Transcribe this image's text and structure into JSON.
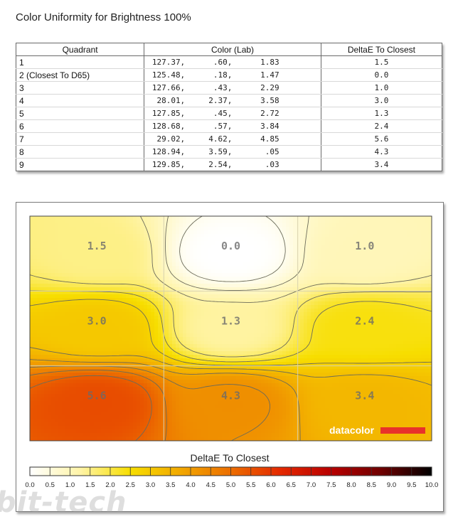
{
  "title": "Color Uniformity for Brightness 100%",
  "table": {
    "headers": [
      "Quadrant",
      "Color (Lab)",
      "DeltaE To Closest"
    ],
    "rows": [
      {
        "quadrant": "1",
        "lab": [
          "127.37,",
          ".60,",
          "1.83"
        ],
        "delta": "1.5"
      },
      {
        "quadrant": "2 (Closest To D65)",
        "lab": [
          "125.48,",
          ".18,",
          "1.47"
        ],
        "delta": "0.0"
      },
      {
        "quadrant": "3",
        "lab": [
          "127.66,",
          ".43,",
          "2.29"
        ],
        "delta": "1.0"
      },
      {
        "quadrant": "4",
        "lab": [
          "28.01,",
          "2.37,",
          "3.58"
        ],
        "delta": "3.0"
      },
      {
        "quadrant": "5",
        "lab": [
          "127.85,",
          ".45,",
          "2.72"
        ],
        "delta": "1.3"
      },
      {
        "quadrant": "6",
        "lab": [
          "128.68,",
          ".57,",
          "3.84"
        ],
        "delta": "2.4"
      },
      {
        "quadrant": "7",
        "lab": [
          "29.02,",
          "4.62,",
          "4.85"
        ],
        "delta": "5.6"
      },
      {
        "quadrant": "8",
        "lab": [
          "128.94,",
          "3.59,",
          ".05"
        ],
        "delta": "4.3"
      },
      {
        "quadrant": "9",
        "lab": [
          "129.85,",
          "2.54,",
          ".03"
        ],
        "delta": "3.4"
      }
    ]
  },
  "chart_data": {
    "type": "heatmap",
    "grid_rows": 3,
    "grid_cols": 3,
    "values": [
      [
        1.5,
        0.0,
        1.0
      ],
      [
        3.0,
        1.3,
        2.4
      ],
      [
        5.6,
        4.3,
        3.4
      ]
    ],
    "colorbar_title": "DeltaE To Closest",
    "colorbar_ticks": [
      "0.0",
      "0.5",
      "1.0",
      "1.5",
      "2.0",
      "2.5",
      "3.0",
      "3.5",
      "4.0",
      "4.5",
      "5.0",
      "5.5",
      "6.0",
      "6.5",
      "7.0",
      "7.5",
      "8.0",
      "8.5",
      "9.0",
      "9.5",
      "10.0"
    ],
    "range": [
      0,
      10
    ],
    "gradient": [
      "#ffffff",
      "#fff4a8",
      "#f7de00",
      "#f2a800",
      "#ec6e00",
      "#e42800",
      "#b80000",
      "#6e0000",
      "#000000"
    ],
    "contours": true
  },
  "logo_text": "datacolor",
  "logo_bar_color": "#e8322a",
  "watermark": "bit-tech"
}
